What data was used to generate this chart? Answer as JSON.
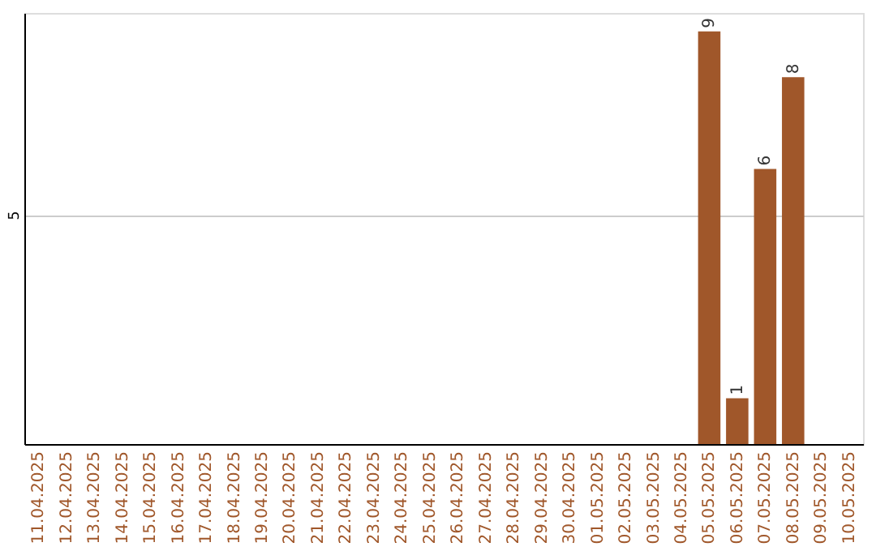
{
  "chart_data": {
    "type": "bar",
    "categories": [
      "11.04.2025",
      "12.04.2025",
      "13.04.2025",
      "14.04.2025",
      "15.04.2025",
      "16.04.2025",
      "17.04.2025",
      "18.04.2025",
      "19.04.2025",
      "20.04.2025",
      "21.04.2025",
      "22.04.2025",
      "23.04.2025",
      "24.04.2025",
      "25.04.2025",
      "26.04.2025",
      "27.04.2025",
      "28.04.2025",
      "29.04.2025",
      "30.04.2025",
      "01.05.2025",
      "02.05.2025",
      "03.05.2025",
      "04.05.2025",
      "05.05.2025",
      "06.05.2025",
      "07.05.2025",
      "08.05.2025",
      "09.05.2025",
      "10.05.2025"
    ],
    "values": [
      null,
      null,
      null,
      null,
      null,
      null,
      null,
      null,
      null,
      null,
      null,
      null,
      null,
      null,
      null,
      null,
      null,
      null,
      null,
      null,
      null,
      null,
      null,
      null,
      9,
      1,
      6,
      8,
      null,
      null
    ],
    "color": "#a0572a",
    "ylim": [
      0,
      9.4
    ],
    "yticks": [
      5
    ],
    "grid": "y",
    "data_labels": true
  }
}
